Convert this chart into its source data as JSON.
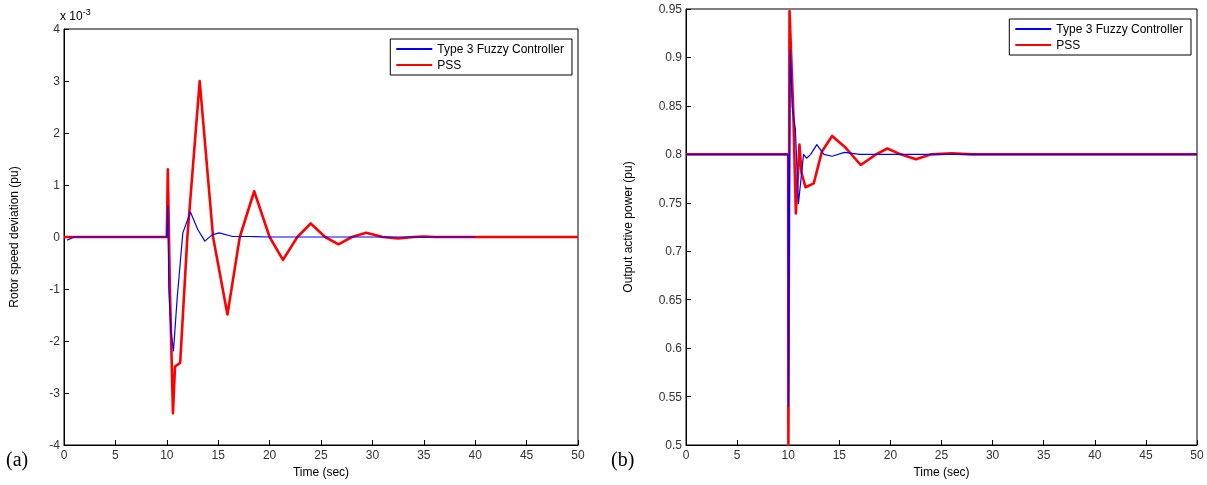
{
  "chart_data": [
    {
      "type": "line",
      "xlabel": "Time (sec)",
      "ylabel": "Rotor speed deviation (pu)",
      "annotations": [
        "x 10$^{-3}$",
        "(a)"
      ],
      "xlim": [
        0,
        50
      ],
      "xticks": [
        0,
        5,
        10,
        15,
        20,
        25,
        30,
        35,
        40,
        45,
        50
      ],
      "ylim": [
        -4,
        4
      ],
      "yticks": [
        -4,
        -3,
        -2,
        -1,
        0,
        1,
        2,
        3,
        4
      ],
      "grid": false,
      "legend": "top right",
      "marker": "none",
      "line_style": "solid",
      "series": [
        {
          "name": "Type 3 Fuzzy Controller",
          "color": "#0000ff",
          "x": [
            0.3,
            1,
            10,
            10.1,
            10.2,
            10.4,
            10.65,
            11,
            11.56,
            12.3,
            13,
            13.7,
            14.4,
            15.1,
            16.4,
            18,
            20,
            40
          ],
          "values": [
            -0.06,
            0,
            0,
            0.6,
            -1,
            -1.8,
            -2.19,
            -1.2,
            0.08,
            0.48,
            0.15,
            -0.08,
            0.04,
            0.08,
            0.01,
            0.01,
            0,
            0
          ]
        },
        {
          "name": "PSS",
          "color": "#ff0000",
          "x": [
            0,
            10,
            10.1,
            10.3,
            10.6,
            10.8,
            11.3,
            12,
            13.2,
            14.5,
            15.9,
            17.1,
            18.5,
            20,
            21.3,
            22.7,
            24,
            25.4,
            26.7,
            28,
            29.4,
            31,
            32.5,
            34,
            35,
            36,
            50
          ],
          "values": [
            0,
            0,
            1.3,
            -1,
            -3.39,
            -2.49,
            -2.42,
            0,
            3.0,
            0,
            -1.49,
            0,
            0.88,
            0,
            -0.44,
            0,
            0.26,
            0,
            -0.14,
            0,
            0.08,
            0,
            -0.03,
            0,
            0.01,
            0,
            0
          ]
        }
      ]
    },
    {
      "type": "line",
      "xlabel": "Time (sec)",
      "ylabel": "Output active power (pu)",
      "annotations": [
        "(b)"
      ],
      "xlim": [
        0,
        50
      ],
      "xticks": [
        0,
        5,
        10,
        15,
        20,
        25,
        30,
        35,
        40,
        45,
        50
      ],
      "ylim": [
        0.5,
        0.95
      ],
      "yticks": [
        0.5,
        0.55,
        0.6,
        0.65,
        0.7,
        0.75,
        0.8,
        0.85,
        0.9,
        0.95
      ],
      "grid": false,
      "legend": "top right",
      "marker": "none",
      "line_style": "solid",
      "series": [
        {
          "name": "Type 3 Fuzzy Controller",
          "color": "#0000ff",
          "x": [
            0,
            10,
            10.02,
            10.2,
            10.4,
            10.7,
            11,
            11.5,
            11.8,
            12.2,
            12.8,
            13.5,
            14.3,
            15.5,
            17,
            50
          ],
          "values": [
            0.8,
            0.8,
            0.54,
            0.908,
            0.849,
            0.826,
            0.749,
            0.8,
            0.796,
            0.8,
            0.81,
            0.8,
            0.798,
            0.802,
            0.8,
            0.8
          ]
        },
        {
          "name": "PSS",
          "color": "#ff0000",
          "x": [
            0,
            10,
            10.02,
            10.13,
            10.5,
            10.75,
            11.1,
            11.3,
            11.7,
            12.5,
            13.3,
            14.3,
            15.6,
            17.1,
            18.6,
            19.7,
            21,
            22.5,
            24,
            26,
            28,
            50
          ],
          "values": [
            0.8,
            0.8,
            0.5,
            0.948,
            0.843,
            0.739,
            0.81,
            0.781,
            0.766,
            0.77,
            0.803,
            0.819,
            0.807,
            0.789,
            0.8,
            0.806,
            0.8,
            0.795,
            0.8,
            0.801,
            0.8,
            0.8
          ]
        }
      ]
    }
  ]
}
